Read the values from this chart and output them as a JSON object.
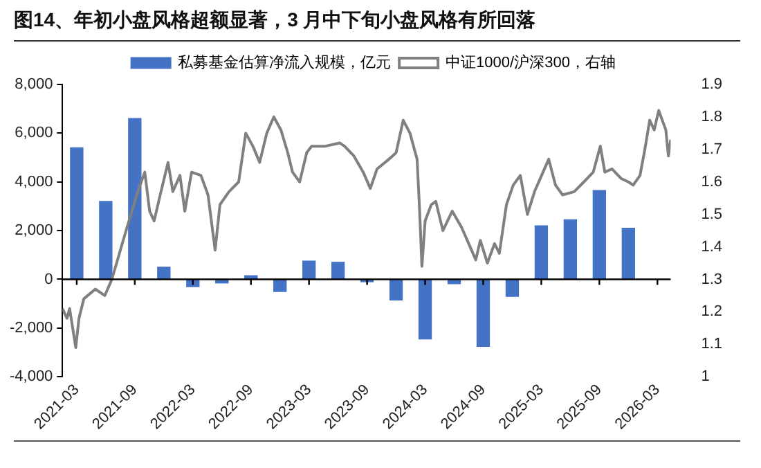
{
  "chart_data": {
    "type": "bar",
    "title": "图14、年初小盘风格超额显著，3 月中下旬小盘风格有所回落",
    "xlim": [
      "2021-01-17",
      "2026-04-12"
    ],
    "ref_lines": [
      {
        "axis": "y",
        "value": 0,
        "color": "#000000"
      }
    ],
    "xticks": [
      "2021-03",
      "2021-09",
      "2022-03",
      "2022-09",
      "2023-03",
      "2023-09",
      "2024-03",
      "2024-09",
      "2025-03",
      "2025-09",
      "2026-03"
    ],
    "ylim": [
      -4000,
      8000
    ],
    "yticks": [
      {
        "value": -4000,
        "label": "-4,000"
      },
      {
        "value": -2000,
        "label": "-2,000"
      },
      0,
      {
        "value": 2000,
        "label": "2,000"
      },
      {
        "value": 4000,
        "label": "4,000"
      },
      {
        "value": 6000,
        "label": "6,000"
      },
      {
        "value": 8000,
        "label": "8,000"
      }
    ],
    "y2lim": [
      1,
      1.9
    ],
    "y2ticks": [
      1,
      1.1,
      1.2,
      1.3,
      1.4,
      1.5,
      1.6,
      1.7,
      1.8,
      1.9
    ],
    "legend": "top",
    "grid": false,
    "series": [
      {
        "name": "私募基金估算净流入规模，亿元",
        "color": "#4472c4",
        "x": [
          "2021-03",
          "2021-06",
          "2021-09",
          "2021-12",
          "2022-03",
          "2022-06",
          "2022-09",
          "2022-12",
          "2023-03",
          "2023-06",
          "2023-09",
          "2023-12",
          "2024-03",
          "2024-06",
          "2024-09",
          "2024-12",
          "2025-03",
          "2025-06",
          "2025-09",
          "2025-12"
        ],
        "values": [
          5400,
          3200,
          6600,
          500,
          -300,
          -150,
          150,
          -500,
          750,
          700,
          -100,
          -850,
          -2450,
          -180,
          -2750,
          -700,
          2200,
          2450,
          3650,
          2100
        ]
      },
      {
        "name": "中证1000/沪深300，右轴",
        "type": "line",
        "axis": "y2",
        "color": "#808080",
        "x": [
          "2021-01-17",
          "2021-02-01",
          "2021-02-09",
          "2021-02-28",
          "2021-03-08",
          "2021-03-23",
          "2021-04-29",
          "2021-05-28",
          "2021-06-20",
          "2021-07-25",
          "2021-09-10",
          "2021-10-02",
          "2021-10-17",
          "2021-11-01",
          "2021-11-15",
          "2021-12-14",
          "2021-12-29",
          "2022-01-21",
          "2022-02-06",
          "2022-02-27",
          "2022-03-26",
          "2022-04-18",
          "2022-05-10",
          "2022-05-25",
          "2022-06-23",
          "2022-07-23",
          "2022-08-15",
          "2022-09-07",
          "2022-09-28",
          "2022-10-20",
          "2022-11-12",
          "2022-12-04",
          "2022-12-25",
          "2023-01-10",
          "2023-02-02",
          "2023-02-24",
          "2023-03-09",
          "2023-04-22",
          "2023-06-06",
          "2023-06-21",
          "2023-07-20",
          "2023-08-19",
          "2023-09-11",
          "2023-10-02",
          "2023-11-09",
          "2023-12-01",
          "2023-12-23",
          "2024-01-14",
          "2024-02-06",
          "2024-02-13",
          "2024-02-21",
          "2024-03-01",
          "2024-03-20",
          "2024-04-04",
          "2024-04-26",
          "2024-05-25",
          "2024-06-24",
          "2024-07-16",
          "2024-08-08",
          "2024-08-22",
          "2024-09-14",
          "2024-10-06",
          "2024-10-21",
          "2024-11-13",
          "2024-12-04",
          "2024-12-26",
          "2025-01-18",
          "2025-02-10",
          "2025-03-02",
          "2025-03-24",
          "2025-04-15",
          "2025-05-07",
          "2025-06-13",
          "2025-07-13",
          "2025-08-12",
          "2025-09-04",
          "2025-09-18",
          "2025-10-10",
          "2025-11-09",
          "2025-12-01",
          "2025-12-16",
          "2026-01-07",
          "2026-01-22",
          "2026-02-07",
          "2026-02-21",
          "2026-03-05",
          "2026-03-27",
          "2026-04-05",
          "2026-04-12"
        ],
        "values": [
          1.21,
          1.18,
          1.21,
          1.09,
          1.18,
          1.24,
          1.27,
          1.25,
          1.3,
          1.42,
          1.57,
          1.63,
          1.51,
          1.48,
          1.54,
          1.66,
          1.57,
          1.62,
          1.51,
          1.63,
          1.62,
          1.56,
          1.39,
          1.53,
          1.57,
          1.6,
          1.75,
          1.71,
          1.66,
          1.75,
          1.8,
          1.76,
          1.69,
          1.63,
          1.6,
          1.69,
          1.71,
          1.71,
          1.72,
          1.71,
          1.68,
          1.63,
          1.58,
          1.64,
          1.67,
          1.69,
          1.79,
          1.75,
          1.67,
          1.53,
          1.34,
          1.48,
          1.53,
          1.54,
          1.45,
          1.51,
          1.46,
          1.41,
          1.36,
          1.42,
          1.35,
          1.41,
          1.38,
          1.53,
          1.59,
          1.62,
          1.5,
          1.57,
          1.62,
          1.67,
          1.59,
          1.56,
          1.57,
          1.6,
          1.63,
          1.71,
          1.63,
          1.64,
          1.61,
          1.6,
          1.59,
          1.62,
          1.7,
          1.79,
          1.76,
          1.82,
          1.76,
          1.68,
          1.73
        ]
      }
    ]
  }
}
